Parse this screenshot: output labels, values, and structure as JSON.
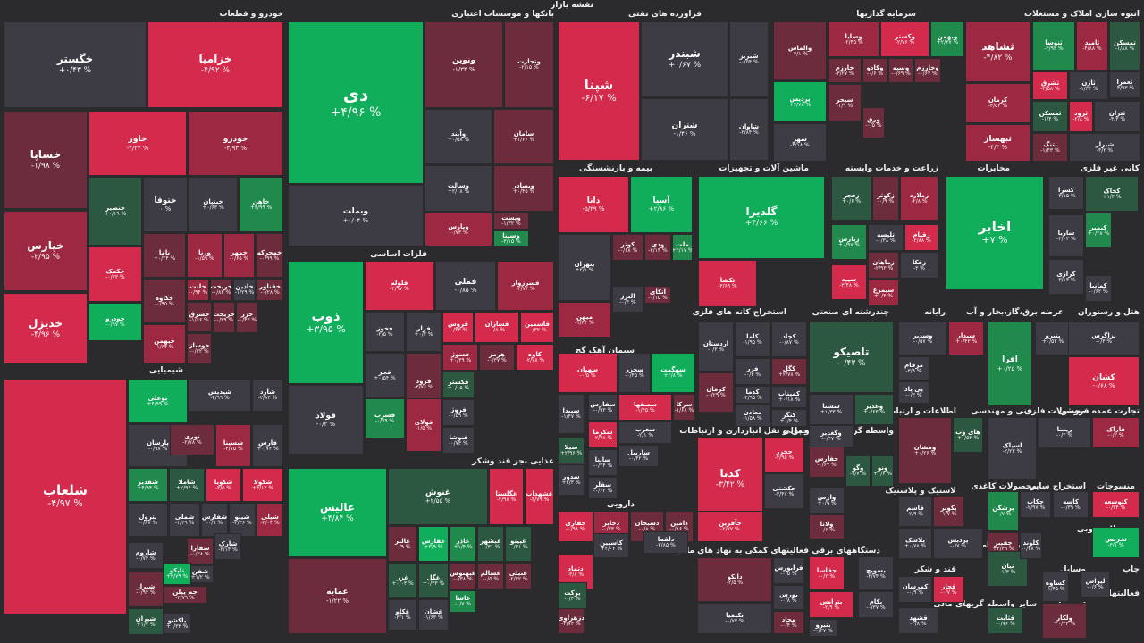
{
  "title": "نقشه بازار",
  "colors": {
    "r1": "#d42b4c",
    "r2": "#9c2841",
    "r3": "#6c2c3c",
    "n0": "#3d3b43",
    "g3": "#2c5740",
    "g2": "#1f8a4c",
    "g1": "#10ad5b"
  },
  "sections": [
    "خودرو و قطعات",
    "بانکها و موسسات اعتباری",
    "فراورده های نفتی",
    "سرمایه گذاریها",
    "انبوه سازی املاک و مستغلات",
    "شیمیایی",
    "فلزات اساسی",
    "بیمه و بازنشستگی",
    "ماشین آلات و تجهیزات",
    "زراعت و خدمات وابسته",
    "مخابرات",
    "کانی غیر فلزی",
    "سیمان آهک گچ",
    "استخراج کانه های فلزی",
    "چندرشته ای صنعتی",
    "رایانه",
    "عرضه برق،گاز،بخار و آب",
    "هتل و رستوران",
    "اطلاعات و ارتباطات",
    "فنی و مهندسی",
    "محصولات فلزی",
    "تجارت عمده فروشی",
    "غذایی بجز قند وشکر",
    "دارویی",
    "حمل و نقل انبارداری و ارتباطات",
    "واسطه گریهای مالی و پولی",
    "لاستیک و پلاستیک",
    "محصولات کاغذی",
    "استخراج سایر",
    "منسوجات",
    "فعالیتهای کمکی به نهاد های مالی",
    "دستگاههای برقی",
    "محصولات چوبی",
    "کاشی و سرامیک",
    "قند و شکر",
    "چاپ",
    "سایر واسطه گریهای مالی",
    "وسایل",
    "فعالیتهای",
    "استخراج"
  ],
  "tiles": [
    "خگستر",
    "+۰/۴۳ %",
    "خزامیا",
    "-۴/۹۲ %",
    "خساپا",
    "-۱/۹۸ %",
    "خاور",
    "-۴/۲۴ %",
    "خودرو",
    "-۳/۹۳ %",
    "خپارس",
    "-۲/۹۵ %",
    "خدیزل",
    "-۴/۹۶ %",
    "خنصیر",
    "+۰/۱۹ %",
    "ختوقا",
    "۰ %",
    "خبنیان",
    "+۰/۶۳ %",
    "خاهن",
    "+۴/۹۹ %",
    "خکمک",
    "-۰/۷۳ %",
    "ناما",
    "+۰/۲۴ %",
    "ورنا",
    "-۱/۵۹ %",
    "خمهر",
    "-۰/۶۵ %",
    "خمحرکه",
    "-۰/۹۹ %",
    "خکاوه",
    "-۰/۹۵ %",
    "خلنت",
    "-۰/۹۴ %",
    "خریخت",
    "-۰/۸۳ %",
    "خاذین",
    "-۱/۲۹ %",
    "خفناور",
    "-۰/۲۸ %",
    "خشرق",
    "-۱/۶۶ %",
    "خبهمن",
    "-۱/۶۴ %",
    "خوساز",
    "-۰/۳۲ %",
    "خریخت",
    "-۰/۳۹ %",
    "خودرو",
    "-۰/۹۷ %",
    "خزر",
    "-۰/۴۳ %",
    "دی",
    "+۴/۹۶ %",
    "ونوین",
    "-۱/۳۴ %",
    "وتجارت",
    "-۲/۱۵ %",
    "وبملت",
    "+۰/۰۴ %",
    "وآیند",
    "+۰/۵۸ %",
    "سامان",
    "+۱/۶۶ %",
    "وسالت",
    "+۲/۰۸ %",
    "وبصادر",
    "+۰/۴۵ %",
    "وپارس",
    "-۰/۷۳ %",
    "وپست",
    "-۱/۳۲ %",
    "وسینا",
    "-۳/۱۵ %",
    "شپنا",
    "-۶/۱۷ %",
    "شبندر",
    "+۰/۶۷ %",
    "شبریز",
    "-۰/۵۴ %",
    "شتران",
    "-۱/۴۶ %",
    "شاوان",
    "-۲/۸۴ %",
    "والماس",
    "-۳/۱ %",
    "وسایا",
    "-۲/۴۵ %",
    "وکستر",
    "-۲/۷۶ %",
    "وبهمن",
    "+۲/۳۷ %",
    "پردیس",
    "+۴/۷۸ %",
    "خارزم",
    "-۳/۲۷ %",
    "وکادو",
    "-۰/۶ %",
    "وسپه",
    "-۰/۶۹ %",
    "وخارزم",
    "-۰/۶۷ %",
    "سبحر",
    "-۱/۹ %",
    "ورق",
    "-۰/۵ %",
    "ثشاهد",
    "-۴/۸۲ %",
    "ثنوسا",
    "-۳/۹۳ %",
    "ثامید",
    "-۴/۸۸ %",
    "تمسکن",
    "-۱/۸۸ %",
    "ثعمرا",
    "-۴/۹۳ %",
    "ثشرق",
    "-۳/۵۸ %",
    "ثاژن",
    "-۱/۳۳ %",
    "ثمسکن",
    "-۱/۴ %",
    "ثرود",
    "-۲/۸ %",
    "ثتران",
    "-۴/۳ %",
    "شیراز",
    "-۴/۲ %",
    "ثبهساز",
    "-۴/۳ %",
    "شهر",
    "-۴/۱۸ %",
    "کرمان",
    "-۳/۵۲ %",
    "نتنگ",
    "-۱/۴۳ %",
    "شلعاب",
    "-۴/۹۷ %",
    "بوعلی",
    "+۴/۹۹ %",
    "شیدیس",
    "-۴/۹۹ %",
    "شارد",
    "-۲/۸۳ %",
    "پارسان",
    "-۰/۹۸ %",
    "نوری",
    "-۲/۷۸ %",
    "شسینا",
    "-۴/۷۵ %",
    "فارس",
    "+۰/۷۴ %",
    "شفدیر",
    "+۴/۹۴ %",
    "شاملا",
    "+۲/۹۴ %",
    "شکویا",
    "-۳/۵ %",
    "شکولا",
    "+۴/۱۴ %",
    "پترول",
    "-۰/۸۷ %",
    "شملی",
    "-۱/۲۹ %",
    "شفارس",
    "-۰/۹ %",
    "شیتو",
    "-۲/۳۶ %",
    "شپلی",
    "-۳/۰۴ %",
    "شفارا",
    "-۰/۲۸ %",
    "شفن",
    "+۱/۲ %",
    "شارک",
    "-۲/۱۴ %",
    "شاروم",
    "-۰/۷۴ %",
    "تاپکو",
    "+۳/۷۹ %",
    "شیراز",
    "-۰/۹۴ %",
    "جم پیلن",
    "-۲/۷۹ %",
    "شیران",
    "+۱/۷ %",
    "پاکشو",
    "+۰/۳۳ %",
    "ذوب",
    "+۳/۹۵ %",
    "فولاد",
    "-۰/۲ %",
    "فلوله",
    "-۲/۹۷ %",
    "فملی",
    "-۰/۸۵ %",
    "فسرزوار",
    "-۲/۷۲ %",
    "فخوز",
    "-۲/۵ %",
    "فزار",
    "+۰/۳ %",
    "فروس",
    "-۰/۴۳ %",
    "فسازان",
    "-۰/۸ %",
    "فاسمین",
    "-۰/۳۲ %",
    "فسوژ",
    "+۰/۳۹ %",
    "هرمز",
    "-۰/۳۷ %",
    "کاوه",
    "-۲/۷۸ %",
    "فجر",
    "+۰/۵۴ %",
    "فرود",
    "-۳/۷۶ %",
    "فکستر",
    "+۰/۱۵ %",
    "فسرب",
    "-۰/۷۹ %",
    "فولای",
    "-۱/۵ %",
    "فروژ",
    "-۰/۵۹ %",
    "فنوشا",
    "-۰/۷۳ %",
    "عالیس",
    "+۴/۸۴ %",
    "غنوش",
    "+۲/۵۵ %",
    "غگلستا",
    "-۴/۹۸ %",
    "غشهداب",
    "-۴/۷۹ %",
    "غمایه",
    "-۱/۲۲ %",
    "غالبر",
    "-۰/۹ %",
    "غفارس",
    "+۳/۹ %",
    "غاذر",
    "+۱/۴ %",
    "غبشهر",
    "-۰/۳۱ %",
    "غپینو",
    "-۰/۳۱ %",
    "غزر",
    "+۰/۰۳ %",
    "غگل",
    "+۰/۳۳ %",
    "غبهنوش",
    "-۰/۳۸ %",
    "غاسا",
    "-۱/۷ %",
    "غسالم",
    "-۰/۵ %",
    "غنیلی",
    "-۲/۳۲ %",
    "غکاو",
    "-۳/۱ %",
    "غشان",
    "-۱/۶۳ %",
    "دانا",
    "-۵/۳۹ %",
    "آسیا",
    "+۲/۸۶ %",
    "بتهران",
    "+۲/۱ %",
    "کوثر",
    "-۰/۶۸ %",
    "ودی",
    "-۲/۱۴ %",
    "ملت",
    "+۲/۱۷ %",
    "البرز",
    "-۰/۳ %",
    "میهن",
    "-۱/۳۲ %",
    "اتکای",
    "-۰/۱۵ %",
    "گلدیرا",
    "+۴/۶۶ %",
    "تکشا",
    "-۳/۶۹ %",
    "زفجر",
    "+۰/۶ %",
    "زکوثر",
    "-۰/۹ %",
    "زملارد",
    "-۲/۸ %",
    "زپارس",
    "+۰/۹۷ %",
    "تلیسه",
    "-۰/۳۸ %",
    "زقیام",
    "-۲/۸۸ %",
    "زماهان",
    "-۲/۹۳ %",
    "زفکا",
    "-۳ %",
    "سیمرغ",
    "+۰/۴ %",
    "سپید",
    "-۳/۴۸ %",
    "اخابر",
    "+۷ %",
    "کسرا",
    "-۳/۱۵ %",
    "کخاک",
    "+۱/۳ %",
    "کیمیر",
    "+۰/۲۸ %",
    "ساربا",
    "-۲/۰۲ %",
    "کرازی",
    "-۳/۱۴ %",
    "کمانیا",
    "-۰/۶۲ %",
    "سهگمت",
    "+۲/۸ %",
    "سخزر",
    "-۰/۴۵ %",
    "سهپان",
    "-۰/۵ %",
    "سرکا",
    "-۱/۶۸ %",
    "سصفها",
    "-۱/۴۵ %",
    "سغرب",
    "-۲/۱ %",
    "سپیدا",
    "-۱/۴۷ %",
    "سبزوا",
    "+۱/۶۸ %",
    "سکرما",
    "-۲/۷۸ %",
    "سفارس",
    "-۰/۹۳ %",
    "ساربیل",
    "-۰/۴۲ %",
    "سیلا",
    "+۲/۹۶ %",
    "ساینا",
    "-۰/۲۴ %",
    "سدور",
    "+۲/۳ %",
    "سفلر",
    "-۰/۶۲ %",
    "اردستان",
    "-۰/۳ %",
    "کاما",
    "-۱/۹۵ %",
    "فزر",
    "-۰/۳ %",
    "کگل",
    "+۲/۷۸ %",
    "کدما",
    "-۲/۹۵ %",
    "کچاد",
    "-۰/۸۷ %",
    "کمیناب",
    "+۰/۱۸ %",
    "کرمان",
    "-۰/۲۹ %",
    "معادن",
    "-۱/۵۸ %",
    "کنگر",
    "+۰/۴ %",
    "تاصیکو",
    "-۰/۴۳ %",
    "شستا",
    "+۱/۳۳ %",
    "وغدیر",
    "+۰/۶۳ %",
    "وکغدیر",
    "-۰/۴۷ %",
    "وسدیر",
    "-۰/۵۷ %",
    "سیدار",
    "+۰/۴۳ %",
    "مرقام",
    "-۳/۹ %",
    "پی پاد",
    "-۰/۳ %",
    "افرا",
    "+۰/۲۵ %",
    "بتیرو",
    "+۰/۵۲ %",
    "بزاگرس",
    "-۰/۳ %",
    "کشان",
    "-۰/۶۸ %",
    "کدنا",
    "-۳/۴۲ %",
    "حخزر",
    "-۴/۹۵ %",
    "حکشتی",
    "-۳/۴۷ %",
    "حآفرین",
    "-۲/۷۷ %",
    "حفارس",
    "-۰/۶۹ %",
    "وگو",
    "-۲/۷ %",
    "ونو",
    "+۰/۶ %",
    "وارس",
    "+۰/۷ %",
    "ولانا",
    "-۰/۶ %",
    "ومشان",
    "+۰/۲۶ %",
    "های وب",
    "+۰/۵۲ %",
    "اسپاک",
    "-۲/۲۳ %",
    "رپمنا",
    "-۰/۲ %",
    "فاراک",
    "-۰/۲ %",
    "قاسم",
    "-۲/۹ %",
    "پکویر",
    "-۱/۷ %",
    "پلاسک",
    "+۰/۷۸ %",
    "پردیس",
    "-۰/۷ %",
    "پرشگن",
    "-۰/۷ %",
    "چکاپ",
    "-۲/۹۷ %",
    "کاسه",
    "-۰/۳۹ %",
    "کتوسعه",
    "-۰/۳۴ %",
    "نخریس",
    "-۳/۱ %",
    "چفیبر",
    "+۳/۳۹ %",
    "نیان",
    "-۱/۳ %",
    "کلوند",
    "-۰/۳۸ %",
    "کساوه",
    "-۱/۴۵ %",
    "لیراس",
    "-۰/۶ %",
    "جفاسا",
    "-۰/۲ %",
    "بسویچ",
    "-۲/۷۴ %",
    "بترانس",
    "-۲/۹ %",
    "بکام",
    "-۰/۳۷ %",
    "بنیرو",
    "-۰/۳۷ %",
    "نیرو",
    "+۰/۰۸ %",
    "کمرسان",
    "-۰/۹ %",
    "قچار",
    "-۰/۷ %",
    "قشهد",
    "-۲/۸ %",
    "قثابت",
    "-۰/۷۶ %",
    "ولکار",
    "+۰/۳۴ %",
    "حفاری",
    "-۰/۹۸ %",
    "دجابر",
    "-۰/۷۳ %",
    "دسبحان",
    "-۰/۸ %",
    "دامین",
    "-۰/۸۶ %",
    "دلقما",
    "-۲/۸۵ %",
    "کاسپین",
    "+۲/۰۲ %",
    "دتماد",
    "-۳/۸ %",
    "دزهراوی",
    "-۳/۷۳ %",
    "برکت",
    "-۰/۳ %",
    "دانکو",
    "-۲/۵ %",
    "تکیمیا",
    "-۰/۷۳ %",
    "فرابورس",
    "-۰/۵ %",
    "بورس",
    "-۰/۸ %",
    "مجاد",
    "-۰/۴ %",
    "سهولت",
    "+۰/۳ %"
  ]
}
